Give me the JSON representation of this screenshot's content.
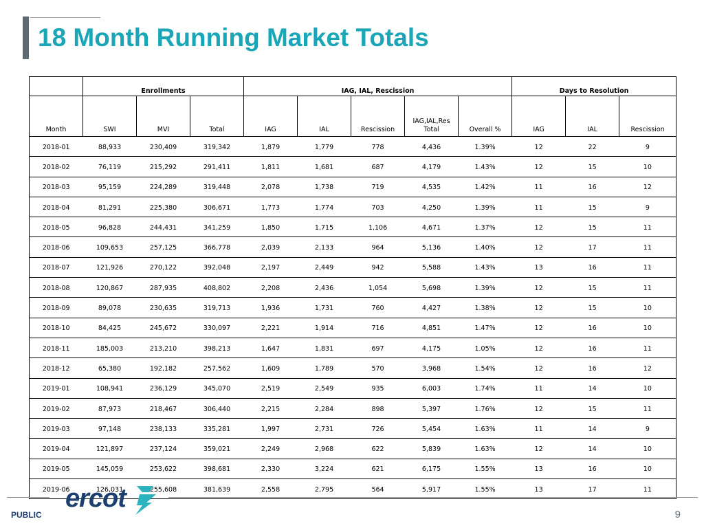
{
  "title": "18 Month Running Market Totals",
  "table": {
    "groups": {
      "enrollments": "Enrollments",
      "iag_ial": "IAG, IAL, Rescission",
      "days": "Days to Resolution"
    },
    "columns": [
      "Month",
      "SWI",
      "MVI",
      "Total",
      "IAG",
      "IAL",
      "Rescission",
      "IAG,IAL,Res Total",
      "Overall %",
      "IAG",
      "IAL",
      "Rescission"
    ],
    "rows": [
      [
        "2018-01",
        "88,933",
        "230,409",
        "319,342",
        "1,879",
        "1,779",
        "778",
        "4,436",
        "1.39%",
        "12",
        "22",
        "9"
      ],
      [
        "2018-02",
        "76,119",
        "215,292",
        "291,411",
        "1,811",
        "1,681",
        "687",
        "4,179",
        "1.43%",
        "12",
        "15",
        "10"
      ],
      [
        "2018-03",
        "95,159",
        "224,289",
        "319,448",
        "2,078",
        "1,738",
        "719",
        "4,535",
        "1.42%",
        "11",
        "16",
        "12"
      ],
      [
        "2018-04",
        "81,291",
        "225,380",
        "306,671",
        "1,773",
        "1,774",
        "703",
        "4,250",
        "1.39%",
        "11",
        "15",
        "9"
      ],
      [
        "2018-05",
        "96,828",
        "244,431",
        "341,259",
        "1,850",
        "1,715",
        "1,106",
        "4,671",
        "1.37%",
        "12",
        "15",
        "11"
      ],
      [
        "2018-06",
        "109,653",
        "257,125",
        "366,778",
        "2,039",
        "2,133",
        "964",
        "5,136",
        "1.40%",
        "12",
        "17",
        "11"
      ],
      [
        "2018-07",
        "121,926",
        "270,122",
        "392,048",
        "2,197",
        "2,449",
        "942",
        "5,588",
        "1.43%",
        "13",
        "16",
        "11"
      ],
      [
        "2018-08",
        "120,867",
        "287,935",
        "408,802",
        "2,208",
        "2,436",
        "1,054",
        "5,698",
        "1.39%",
        "12",
        "15",
        "11"
      ],
      [
        "2018-09",
        "89,078",
        "230,635",
        "319,713",
        "1,936",
        "1,731",
        "760",
        "4,427",
        "1.38%",
        "12",
        "15",
        "10"
      ],
      [
        "2018-10",
        "84,425",
        "245,672",
        "330,097",
        "2,221",
        "1,914",
        "716",
        "4,851",
        "1.47%",
        "12",
        "16",
        "10"
      ],
      [
        "2018-11",
        "185,003",
        "213,210",
        "398,213",
        "1,647",
        "1,831",
        "697",
        "4,175",
        "1.05%",
        "12",
        "16",
        "11"
      ],
      [
        "2018-12",
        "65,380",
        "192,182",
        "257,562",
        "1,609",
        "1,789",
        "570",
        "3,968",
        "1.54%",
        "12",
        "16",
        "12"
      ],
      [
        "2019-01",
        "108,941",
        "236,129",
        "345,070",
        "2,519",
        "2,549",
        "935",
        "6,003",
        "1.74%",
        "11",
        "14",
        "10"
      ],
      [
        "2019-02",
        "87,973",
        "218,467",
        "306,440",
        "2,215",
        "2,284",
        "898",
        "5,397",
        "1.76%",
        "12",
        "15",
        "11"
      ],
      [
        "2019-03",
        "97,148",
        "238,133",
        "335,281",
        "1,997",
        "2,731",
        "726",
        "5,454",
        "1.63%",
        "11",
        "14",
        "9"
      ],
      [
        "2019-04",
        "121,897",
        "237,124",
        "359,021",
        "2,249",
        "2,968",
        "622",
        "5,839",
        "1.63%",
        "12",
        "14",
        "10"
      ],
      [
        "2019-05",
        "145,059",
        "253,622",
        "398,681",
        "2,330",
        "3,224",
        "621",
        "6,175",
        "1.55%",
        "13",
        "16",
        "10"
      ],
      [
        "2019-06",
        "126,031",
        "255,608",
        "381,639",
        "2,558",
        "2,795",
        "564",
        "5,917",
        "1.55%",
        "13",
        "17",
        "11"
      ]
    ]
  },
  "footer": {
    "logo_text": "ercot",
    "classification": "PUBLIC",
    "page_number": "9"
  },
  "colors": {
    "title": "#1aa6b7",
    "logo": "#1d3f6e",
    "logo_mark": "#2bb3c0"
  }
}
